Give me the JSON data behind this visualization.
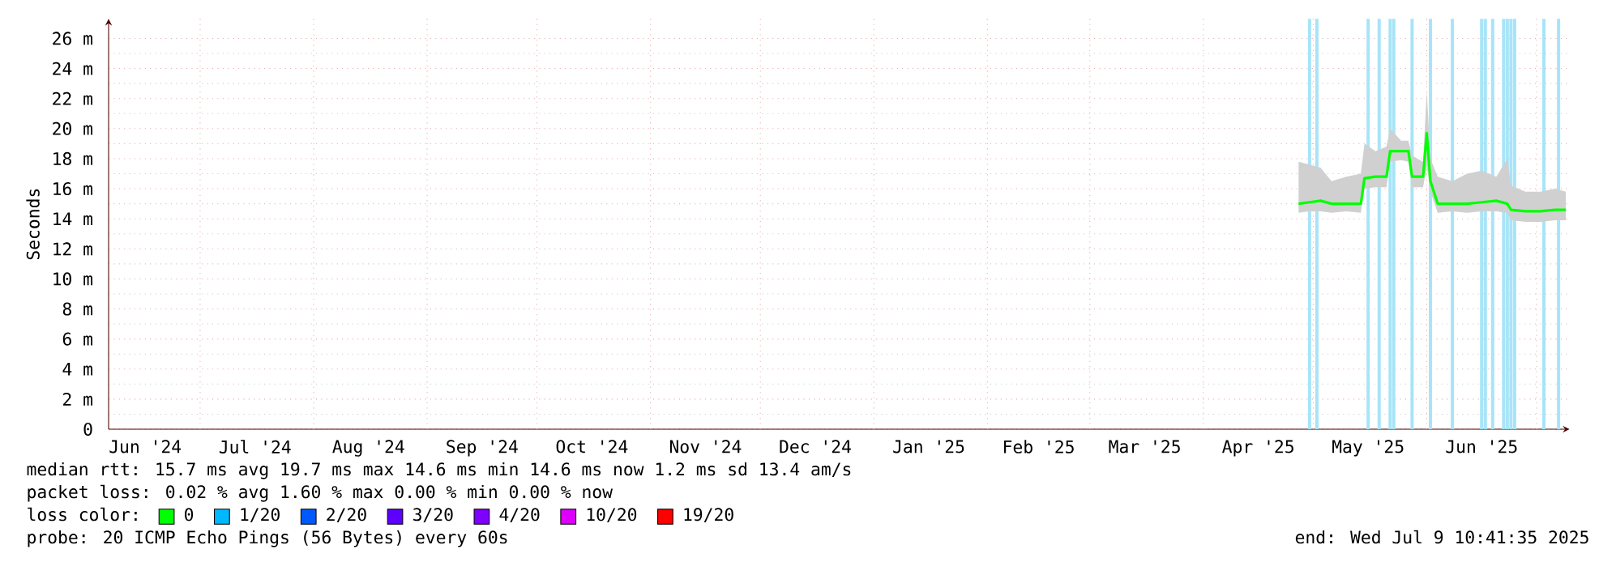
{
  "chart_data": {
    "type": "line",
    "ylabel": "Seconds",
    "legend_title": "loss color:",
    "legend": "bottom",
    "grid": true,
    "xlim": [
      "2024-06-06",
      "2025-07-10"
    ],
    "ylim": [
      0,
      27.3
    ],
    "xticks": [
      {
        "value": "2024-06-16",
        "label": "Jun '24"
      },
      {
        "value": "2024-07-16",
        "label": "Jul '24"
      },
      {
        "value": "2024-08-16",
        "label": "Aug '24"
      },
      {
        "value": "2024-09-16",
        "label": "Sep '24"
      },
      {
        "value": "2024-10-16",
        "label": "Oct '24"
      },
      {
        "value": "2024-11-16",
        "label": "Nov '24"
      },
      {
        "value": "2024-12-16",
        "label": "Dec '24"
      },
      {
        "value": "2025-01-16",
        "label": "Jan '25"
      },
      {
        "value": "2025-02-15",
        "label": "Feb '25"
      },
      {
        "value": "2025-03-16",
        "label": "Mar '25"
      },
      {
        "value": "2025-04-16",
        "label": "Apr '25"
      },
      {
        "value": "2025-05-16",
        "label": "May '25"
      },
      {
        "value": "2025-06-16",
        "label": "Jun '25"
      },
      {
        "value": "2024-07-01",
        "label": null
      },
      {
        "value": "2024-08-01",
        "label": null
      },
      {
        "value": "2024-09-01",
        "label": null
      },
      {
        "value": "2024-10-01",
        "label": null
      },
      {
        "value": "2024-11-01",
        "label": null
      },
      {
        "value": "2024-12-01",
        "label": null
      },
      {
        "value": "2025-01-01",
        "label": null
      },
      {
        "value": "2025-02-01",
        "label": null
      },
      {
        "value": "2025-03-01",
        "label": null
      },
      {
        "value": "2025-04-01",
        "label": null
      },
      {
        "value": "2025-05-01",
        "label": null
      },
      {
        "value": "2025-06-01",
        "label": null
      },
      {
        "value": "2025-07-01",
        "label": null
      }
    ],
    "yticks": [
      0,
      {
        "value": 2,
        "label": "2 m"
      },
      {
        "value": 4,
        "label": "4 m"
      },
      {
        "value": 6,
        "label": "6 m"
      },
      {
        "value": 8,
        "label": "8 m"
      },
      {
        "value": 10,
        "label": "10 m"
      },
      {
        "value": 12,
        "label": "12 m"
      },
      {
        "value": 14,
        "label": "14 m"
      },
      {
        "value": 16,
        "label": "16 m"
      },
      {
        "value": 18,
        "label": "18 m"
      },
      {
        "value": 20,
        "label": "20 m"
      },
      {
        "value": 22,
        "label": "22 m"
      },
      {
        "value": 24,
        "label": "24 m"
      },
      {
        "value": 26,
        "label": "26 m"
      }
    ],
    "series": [
      {
        "name": "0",
        "color": "#00ff00",
        "x": [
          "2025-04-27",
          "2025-04-30",
          "2025-05-03",
          "2025-05-06",
          "2025-05-10",
          "2025-05-14",
          "2025-05-15",
          "2025-05-18",
          "2025-05-21",
          "2025-05-22",
          "2025-05-25",
          "2025-05-27",
          "2025-05-28",
          "2025-05-31",
          "2025-06-01",
          "2025-06-02",
          "2025-06-04",
          "2025-06-08",
          "2025-06-12",
          "2025-06-16",
          "2025-06-20",
          "2025-06-23",
          "2025-06-24",
          "2025-06-28",
          "2025-07-02",
          "2025-07-06",
          "2025-07-09"
        ],
        "values": [
          15.0,
          15.1,
          15.2,
          15.0,
          15.0,
          15.0,
          16.7,
          16.8,
          16.8,
          18.5,
          18.5,
          18.5,
          16.8,
          16.8,
          19.7,
          16.5,
          15.0,
          15.0,
          15.0,
          15.1,
          15.2,
          15.0,
          14.6,
          14.5,
          14.5,
          14.6,
          14.6
        ],
        "lower": [
          14.4,
          14.5,
          14.5,
          14.4,
          14.5,
          14.4,
          16.0,
          16.1,
          16.1,
          17.8,
          17.9,
          17.8,
          16.1,
          16.1,
          17.5,
          15.8,
          14.4,
          14.5,
          14.4,
          14.5,
          14.5,
          14.4,
          13.9,
          13.8,
          13.8,
          13.9,
          13.9
        ],
        "upper": [
          17.8,
          17.6,
          17.4,
          16.5,
          16.8,
          17.0,
          19.0,
          18.5,
          18.8,
          20.0,
          19.2,
          19.2,
          18.2,
          17.8,
          22.5,
          18.0,
          16.8,
          16.5,
          17.0,
          17.2,
          16.8,
          18.0,
          16.2,
          15.8,
          15.8,
          16.0,
          15.8
        ]
      },
      {
        "name": "1/20",
        "color": "#00b8ff"
      },
      {
        "name": "2/20",
        "color": "#0059ff"
      },
      {
        "name": "3/20",
        "color": "#5e00ff"
      },
      {
        "name": "4/20",
        "color": "#7e00ff"
      },
      {
        "name": "10/20",
        "color": "#dd00ff"
      },
      {
        "name": "19/20",
        "color": "#ff0000"
      }
    ],
    "ref_lines": [
      {
        "axis": "x",
        "value": "2025-04-30",
        "color": "#a8e4f8"
      },
      {
        "axis": "x",
        "value": "2025-05-02",
        "color": "#a8e4f8"
      },
      {
        "axis": "x",
        "value": "2025-05-16",
        "color": "#a8e4f8"
      },
      {
        "axis": "x",
        "value": "2025-05-19",
        "color": "#a8e4f8"
      },
      {
        "axis": "x",
        "value": "2025-05-22",
        "color": "#a8e4f8"
      },
      {
        "axis": "x",
        "value": "2025-05-23",
        "color": "#a8e4f8"
      },
      {
        "axis": "x",
        "value": "2025-05-28",
        "color": "#a8e4f8"
      },
      {
        "axis": "x",
        "value": "2025-06-02",
        "color": "#a8e4f8"
      },
      {
        "axis": "x",
        "value": "2025-06-08",
        "color": "#a8e4f8"
      },
      {
        "axis": "x",
        "value": "2025-06-16",
        "color": "#a8e4f8"
      },
      {
        "axis": "x",
        "value": "2025-06-17",
        "color": "#a8e4f8"
      },
      {
        "axis": "x",
        "value": "2025-06-19",
        "color": "#a8e4f8"
      },
      {
        "axis": "x",
        "value": "2025-06-22",
        "color": "#a8e4f8"
      },
      {
        "axis": "x",
        "value": "2025-06-23",
        "color": "#a8e4f8"
      },
      {
        "axis": "x",
        "value": "2025-06-24",
        "color": "#a8e4f8"
      },
      {
        "axis": "x",
        "value": "2025-06-25",
        "color": "#a8e4f8"
      },
      {
        "axis": "x",
        "value": "2025-07-03",
        "color": "#a8e4f8"
      },
      {
        "axis": "x",
        "value": "2025-07-07",
        "color": "#a8e4f8"
      }
    ],
    "annotations": [
      "median rtt:  15.7 ms avg  19.7 ms max  14.6 ms min  14.6 ms now  1.2 ms sd  13.4   am/s",
      "packet loss: 0.02 % avg  1.60 % max  0.00 % min  0.00 % now",
      "probe:       20 ICMP Echo Pings (56 Bytes) every 60s",
      "end: Wed Jul  9 10:41:35 2025"
    ]
  }
}
